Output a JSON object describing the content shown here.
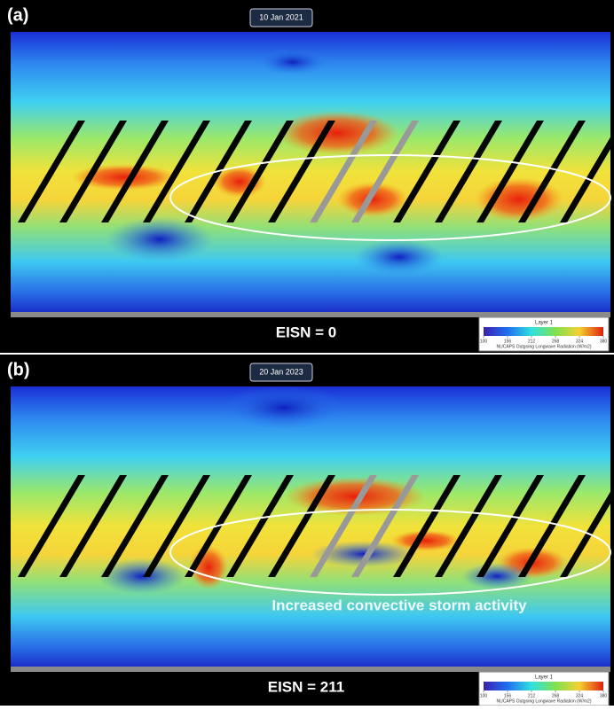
{
  "panels": [
    {
      "label": "(a)",
      "date": "10 Jan 2021",
      "caption": "EISN = 0",
      "colorbar": {
        "title": "Layer 1",
        "ticks": [
          100,
          156,
          212,
          268,
          324,
          380
        ],
        "axis_label": "NUCAPS Outgoing Longwave Radiation (W/m2)"
      }
    },
    {
      "label": "(b)",
      "date": "20 Jan 2023",
      "caption": "EISN = 211",
      "annotation": "Increased convective storm activity",
      "colorbar": {
        "title": "Layer 1",
        "ticks": [
          100,
          156,
          212,
          268,
          324,
          380
        ],
        "axis_label": "NUCAPS Outgoing Longwave Radiation (W/m2)"
      }
    }
  ]
}
